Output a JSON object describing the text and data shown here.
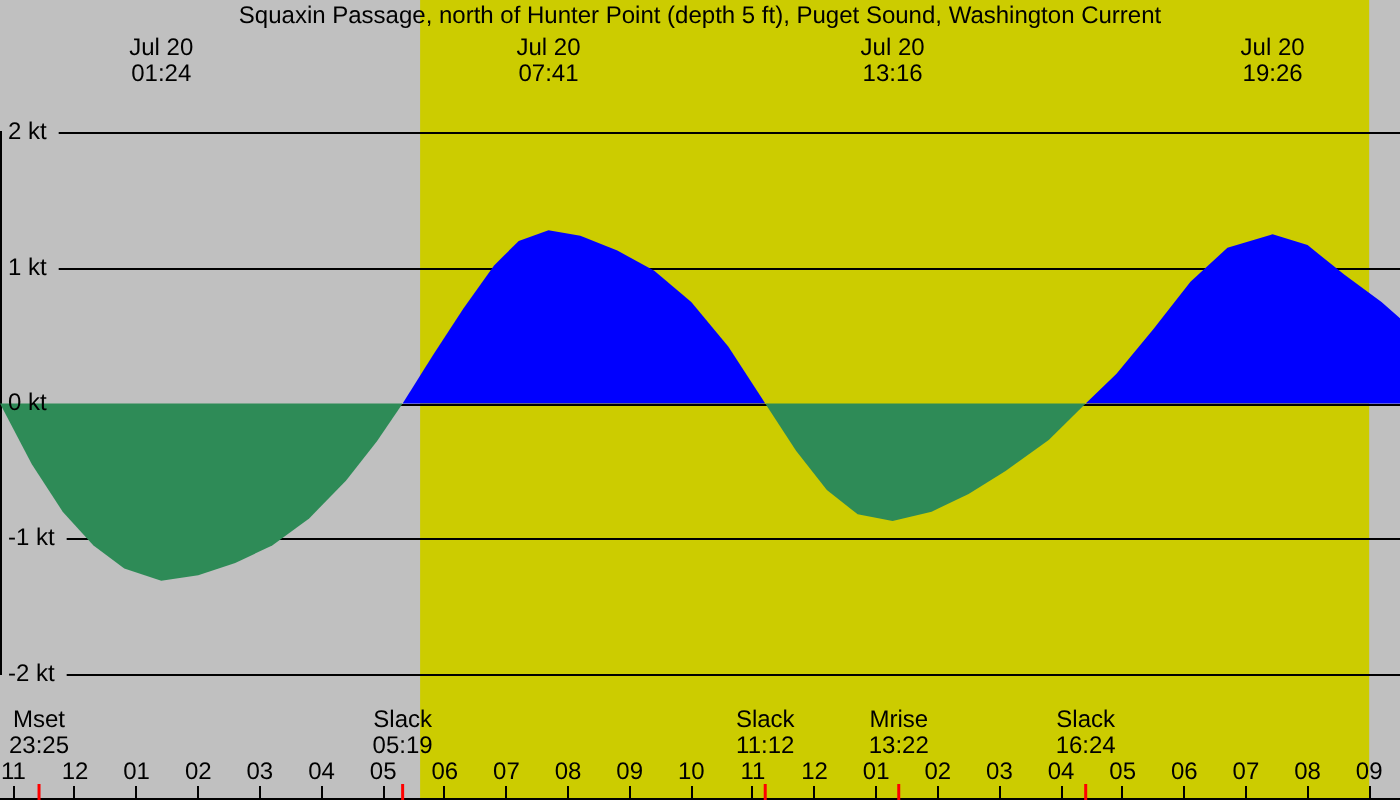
{
  "chart_data": {
    "type": "area",
    "title": "Squaxin Passage, north of Hunter Point (depth 5 ft), Puget Sound, Washington Current",
    "series": [
      {
        "color": "#2e8b57",
        "x": [
          "--07-19T22:47",
          "--07-19T23:18",
          "--07-19T23:48",
          "--07-20T00:18",
          "--07-20T00:48",
          "--07-20T01:24",
          "--07-20T02:00",
          "--07-20T02:36",
          "--07-20T03:12",
          "--07-20T03:48",
          "--07-20T04:24",
          "--07-20T04:54",
          "--07-20T05:19",
          "--07-20T08:00",
          "--07-20T11:12",
          "--07-20T11:42",
          "--07-20T12:12",
          "--07-20T12:42",
          "--07-20T13:16",
          "--07-20T13:54",
          "--07-20T14:30",
          "--07-20T15:06",
          "--07-20T15:48",
          "--07-20T16:24"
        ],
        "values": [
          0,
          -0.45,
          -0.8,
          -1.05,
          -1.22,
          -1.31,
          -1.27,
          -1.18,
          -1.05,
          -0.85,
          -0.57,
          -0.28,
          0,
          null,
          0,
          -0.35,
          -0.64,
          -0.82,
          -0.87,
          -0.8,
          -0.67,
          -0.5,
          -0.27,
          0
        ]
      },
      {
        "color": "#0000ff",
        "x": [
          "--07-20T05:19",
          "--07-20T05:48",
          "--07-20T06:18",
          "--07-20T06:48",
          "--07-20T07:12",
          "--07-20T07:41",
          "--07-20T08:12",
          "--07-20T08:48",
          "--07-20T09:24",
          "--07-20T10:00",
          "--07-20T10:36",
          "--07-20T11:12",
          "--07-20T14:00",
          "--07-20T16:24",
          "--07-20T16:54",
          "--07-20T17:30",
          "--07-20T18:06",
          "--07-20T18:42",
          "--07-20T19:26",
          "--07-20T20:00",
          "--07-20T20:36",
          "--07-20T21:12",
          "--07-20T21:30"
        ],
        "values": [
          0,
          0.35,
          0.7,
          1.02,
          1.2,
          1.28,
          1.24,
          1.13,
          0.98,
          0.75,
          0.42,
          0,
          null,
          0,
          0.22,
          0.55,
          0.9,
          1.15,
          1.25,
          1.17,
          0.95,
          0.75,
          0.63
        ]
      }
    ],
    "xlim": [
      "--07-19T22:47",
      "--07-20T21:30"
    ],
    "xticks": [
      {
        "value": "--07-19T23:00",
        "label": "11"
      },
      {
        "value": "--07-20T00:00",
        "label": "12"
      },
      {
        "value": "--07-20T01:00",
        "label": "01"
      },
      {
        "value": "--07-20T02:00",
        "label": "02"
      },
      {
        "value": "--07-20T03:00",
        "label": "03"
      },
      {
        "value": "--07-20T04:00",
        "label": "04"
      },
      {
        "value": "--07-20T05:00",
        "label": "05"
      },
      {
        "value": "--07-20T06:00",
        "label": "06"
      },
      {
        "value": "--07-20T07:00",
        "label": "07"
      },
      {
        "value": "--07-20T08:00",
        "label": "08"
      },
      {
        "value": "--07-20T09:00",
        "label": "09"
      },
      {
        "value": "--07-20T10:00",
        "label": "10"
      },
      {
        "value": "--07-20T11:00",
        "label": "11"
      },
      {
        "value": "--07-20T12:00",
        "label": "12"
      },
      {
        "value": "--07-20T13:00",
        "label": "01"
      },
      {
        "value": "--07-20T14:00",
        "label": "02"
      },
      {
        "value": "--07-20T15:00",
        "label": "03"
      },
      {
        "value": "--07-20T16:00",
        "label": "04"
      },
      {
        "value": "--07-20T17:00",
        "label": "05"
      },
      {
        "value": "--07-20T18:00",
        "label": "06"
      },
      {
        "value": "--07-20T19:00",
        "label": "07"
      },
      {
        "value": "--07-20T20:00",
        "label": "08"
      },
      {
        "value": "--07-20T21:00",
        "label": "09"
      }
    ],
    "ylim": [
      -2,
      2
    ],
    "yticks": [
      {
        "value": -2,
        "label": "-2 kt"
      },
      {
        "value": -1,
        "label": "-1 kt"
      },
      {
        "value": 0,
        "label": "0 kt"
      },
      {
        "value": 1,
        "label": "1 kt"
      },
      {
        "value": 2,
        "label": "2 kt"
      }
    ],
    "grid": "y",
    "bands": [
      {
        "axis": "x",
        "from": "--07-20T05:36",
        "to": "--07-20T21:00",
        "color": "#cccc00"
      }
    ],
    "ref_lines": [
      {
        "axis": "x",
        "value": "--07-19T23:25",
        "label": "Mset\n23:25",
        "color": "#ff0000"
      },
      {
        "axis": "x",
        "value": "--07-20T05:19",
        "label": "Slack\n05:19",
        "color": "#ff0000"
      },
      {
        "axis": "x",
        "value": "--07-20T11:12",
        "label": "Slack\n11:12",
        "color": "#ff0000"
      },
      {
        "axis": "x",
        "value": "--07-20T13:22",
        "label": "Mrise\n13:22",
        "color": "#ff0000"
      },
      {
        "axis": "x",
        "value": "--07-20T16:24",
        "label": "Slack\n16:24",
        "color": "#ff0000"
      }
    ],
    "annotations": [
      "Jul 20\n01:24",
      "Jul 20\n07:41",
      "Jul 20\n13:16",
      "Jul 20\n19:26"
    ]
  }
}
